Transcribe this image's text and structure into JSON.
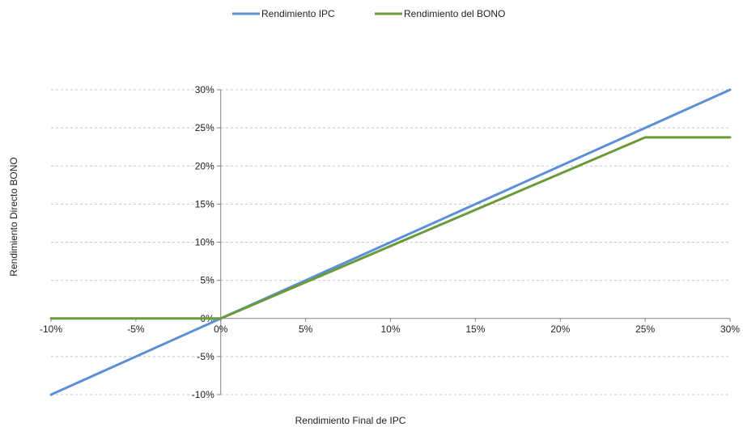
{
  "chart_data": {
    "type": "line",
    "title": "",
    "xlabel": "Rendimiento Final de IPC",
    "ylabel": "Rendimiento Directo BONO",
    "xlim": [
      -10,
      30
    ],
    "ylim": [
      -10,
      30
    ],
    "x_ticks": [
      -10,
      -5,
      0,
      5,
      10,
      15,
      20,
      25,
      30
    ],
    "y_ticks": [
      -10,
      -5,
      0,
      5,
      10,
      15,
      20,
      25,
      30
    ],
    "x_tick_labels": [
      "-10%",
      "-5%",
      "0%",
      "5%",
      "10%",
      "15%",
      "20%",
      "25%",
      "30%"
    ],
    "y_tick_labels": [
      "-10%",
      "-5%",
      "0%",
      "5%",
      "10%",
      "15%",
      "20%",
      "25%",
      "30%"
    ],
    "grid": "horizontal dashed",
    "legend_position": "top-center",
    "series": [
      {
        "name": "Rendimiento IPC",
        "color": "#5b8fd6",
        "x": [
          -10,
          0,
          30
        ],
        "y": [
          -10,
          0,
          30
        ]
      },
      {
        "name": "Rendimiento del BONO",
        "color": "#6a9a3a",
        "x": [
          -10,
          0,
          25,
          30
        ],
        "y": [
          0,
          0,
          23.75,
          23.75
        ]
      }
    ]
  }
}
